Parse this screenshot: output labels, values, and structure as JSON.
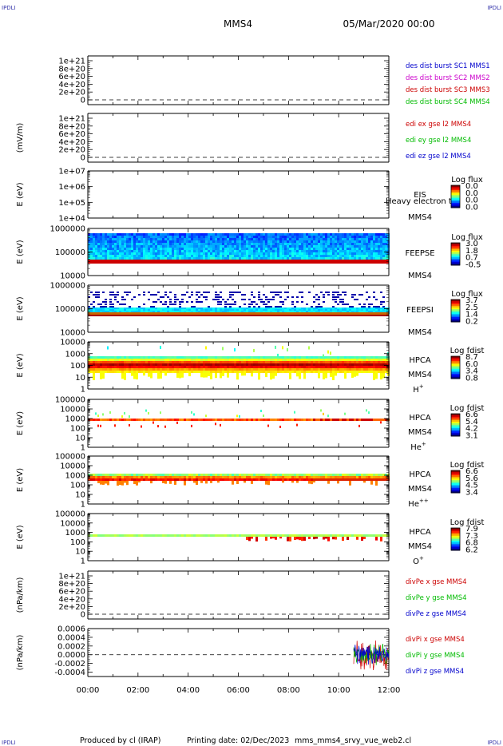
{
  "corner_label": "IPDLI",
  "header": {
    "title": "MMS4",
    "date": "05/Mar/2020 00:00"
  },
  "footer": {
    "produced_by": "Produced by cl (IRAP)",
    "printing_date": "Printing date: 02/Dec/2023",
    "filename": "mms_mms4_srvy_vue_web2.cl"
  },
  "colors": {
    "mms1": "#0000cc",
    "mms2": "#cc00cc",
    "mms3": "#cc0000",
    "mms4": "#00bb00",
    "x_component": "#cc0000",
    "y_component": "#00bb00",
    "z_component": "#0000cc"
  },
  "chart_data": {
    "type": "multi-panel",
    "x_axis": {
      "tick_labels": [
        "00:00",
        "02:00",
        "04:00",
        "06:00",
        "08:00",
        "10:00",
        "12:00"
      ],
      "range_hours": [
        0,
        12
      ]
    },
    "panels": [
      {
        "id": "des",
        "type": "line",
        "ylabel": "",
        "yticks": [
          "1e+21",
          "8e+20",
          "6e+20",
          "4e+20",
          "2e+20",
          "0"
        ],
        "legend": [
          {
            "label": "des dist burst SC1 MMS1",
            "color": "#0000cc"
          },
          {
            "label": "des dist burst SC2 MMS2",
            "color": "#cc00cc"
          },
          {
            "label": "des dist burst SC3 MMS3",
            "color": "#cc0000"
          },
          {
            "label": "des dist burst SC4 MMS4",
            "color": "#00bb00"
          }
        ],
        "dashed_zero": true
      },
      {
        "id": "edi",
        "type": "line",
        "ylabel": "(mV/m)",
        "yticks": [
          "1e+21",
          "8e+20",
          "6e+20",
          "4e+20",
          "2e+20",
          "0"
        ],
        "legend": [
          {
            "label": "edi ex gse l2 MMS4",
            "color": "#cc0000"
          },
          {
            "label": "edi ey gse l2 MMS4",
            "color": "#00bb00"
          },
          {
            "label": "edi ez gse l2 MMS4",
            "color": "#0000cc"
          }
        ],
        "dashed_zero": true
      },
      {
        "id": "eis",
        "type": "heatmap",
        "ylabel": "E (eV)",
        "yticks": [
          "1e+07",
          "1e+06",
          "1e+05",
          "1e+04"
        ],
        "instrument": [
          "EIS",
          "MMS4"
        ],
        "overlay_text": "Heavy electron to",
        "colorbar_title": "Log flux",
        "colorbar_ticks": [
          "0.0",
          "0.0",
          "0.0",
          "0.0"
        ]
      },
      {
        "id": "feepse",
        "type": "heatmap",
        "ylabel": "E (eV)",
        "yticks": [
          "1000000",
          "100000",
          "10000"
        ],
        "instrument": [
          "FEEPSE",
          "MMS4"
        ],
        "colorbar_title": "Log flux",
        "colorbar_ticks": [
          "3.0",
          "1.8",
          "0.7",
          "-0.5"
        ]
      },
      {
        "id": "feepsi",
        "type": "heatmap",
        "ylabel": "E (eV)",
        "yticks": [
          "1000000",
          "100000",
          "10000"
        ],
        "instrument": [
          "FEEPSI",
          "MMS4"
        ],
        "colorbar_title": "Log flux",
        "colorbar_ticks": [
          "3.7",
          "2.5",
          "1.4",
          "0.2"
        ]
      },
      {
        "id": "hpca_h",
        "type": "heatmap",
        "ylabel": "E (eV)",
        "yticks": [
          "10000",
          "1000",
          "100",
          "10",
          "1"
        ],
        "instrument": [
          "HPCA",
          "MMS4"
        ],
        "species_base": "H",
        "species_sup": "+",
        "colorbar_title": "Log fdist",
        "colorbar_ticks": [
          "8.7",
          "6.0",
          "3.4",
          "0.8"
        ]
      },
      {
        "id": "hpca_he",
        "type": "heatmap",
        "ylabel": "E (eV)",
        "yticks": [
          "100000",
          "10000",
          "1000",
          "100",
          "10",
          "1"
        ],
        "instrument": [
          "HPCA",
          "MMS4"
        ],
        "species_base": "He",
        "species_sup": "+",
        "colorbar_title": "Log fdist",
        "colorbar_ticks": [
          "6.6",
          "5.4",
          "4.2",
          "3.1"
        ]
      },
      {
        "id": "hpca_hepp",
        "type": "heatmap",
        "ylabel": "E (eV)",
        "yticks": [
          "100000",
          "10000",
          "1000",
          "100",
          "10",
          "1"
        ],
        "instrument": [
          "HPCA",
          "MMS4"
        ],
        "species_base": "He",
        "species_sup": "++",
        "colorbar_title": "Log fdist",
        "colorbar_ticks": [
          "6.6",
          "5.6",
          "4.5",
          "3.4"
        ]
      },
      {
        "id": "hpca_o",
        "type": "heatmap",
        "ylabel": "E (eV)",
        "yticks": [
          "100000",
          "10000",
          "1000",
          "100",
          "10",
          "1"
        ],
        "instrument": [
          "HPCA",
          "MMS4"
        ],
        "species_base": "O",
        "species_sup": "+",
        "colorbar_title": "Log fdist",
        "colorbar_ticks": [
          "7.9",
          "7.3",
          "6.8",
          "6.2"
        ]
      },
      {
        "id": "divpe",
        "type": "line",
        "ylabel": "(nPa/km)",
        "yticks": [
          "1e+21",
          "8e+20",
          "6e+20",
          "4e+20",
          "2e+20",
          "0"
        ],
        "legend": [
          {
            "label": "divPe x gse MMS4",
            "color": "#cc0000"
          },
          {
            "label": "divPe y gse MMS4",
            "color": "#00bb00"
          },
          {
            "label": "divPe z gse MMS4",
            "color": "#0000cc"
          }
        ],
        "dashed_zero": true
      },
      {
        "id": "divpi",
        "type": "line",
        "ylabel": "(nPa/km)",
        "yticks": [
          "0.0006",
          "0.0004",
          "0.0002",
          "0.0000",
          "-0.0002",
          "-0.0004"
        ],
        "ylim": [
          -0.0005,
          0.0006
        ],
        "legend": [
          {
            "label": "divPi x gse MMS4",
            "color": "#cc0000"
          },
          {
            "label": "divPi y gse MMS4",
            "color": "#00bb00"
          },
          {
            "label": "divPi z gse MMS4",
            "color": "#0000cc"
          }
        ],
        "data_start_hour": 10.6,
        "dashed_zero": true
      }
    ]
  }
}
